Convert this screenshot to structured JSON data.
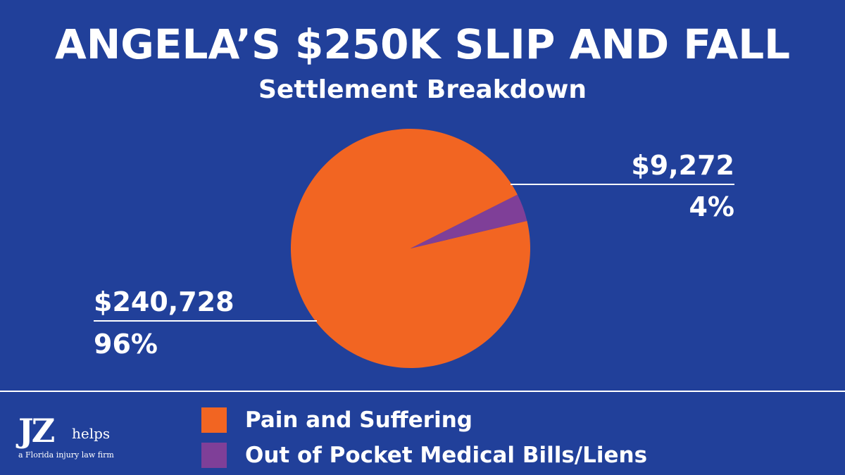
{
  "header": {
    "title": "ANGELA’S $250K SLIP AND FALL",
    "subtitle": "Settlement Breakdown"
  },
  "colors": {
    "background": "#21409a",
    "pain_and_suffering": "#f26522",
    "medical_bills": "#7f3f98",
    "text": "#ffffff"
  },
  "chart_data": {
    "type": "pie",
    "title": "ANGELA’S $250K SLIP AND FALL",
    "subtitle": "Settlement Breakdown",
    "series": [
      {
        "name": "Pain and Suffering",
        "value": 240728,
        "value_label": "$240,728",
        "percent_label": "96%",
        "color": "#f26522"
      },
      {
        "name": "Out of Pocket Medical Bills/Liens",
        "value": 9272,
        "value_label": "$9,272",
        "percent_label": "4%",
        "color": "#7f3f98"
      }
    ],
    "legend_placement": "bottom"
  },
  "logo": {
    "monogram": "JZ",
    "word": "helps",
    "tagline": "a Florida injury law firm"
  }
}
